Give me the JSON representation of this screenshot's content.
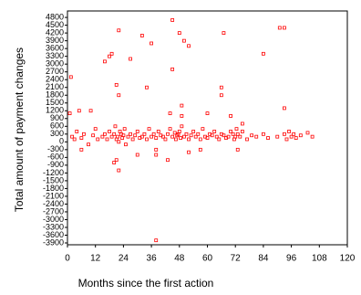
{
  "chart_data": {
    "type": "scatter",
    "y_label": "Total amount of payment changes",
    "x_label": "Months since the first action",
    "color": "#ff0000",
    "xlim": [
      0,
      120
    ],
    "ylim": [
      -3970,
      5050
    ],
    "xticks": [
      0,
      12,
      24,
      36,
      48,
      60,
      72,
      84,
      96,
      108,
      120
    ],
    "yticks": [
      -3900,
      -3600,
      -3300,
      -3000,
      -2700,
      -2400,
      -2100,
      -1800,
      -1500,
      -1200,
      -900,
      -600,
      -300,
      0,
      300,
      600,
      900,
      1200,
      1500,
      1800,
      2100,
      2400,
      2700,
      3000,
      3300,
      3600,
      3900,
      4200,
      4500,
      4800
    ],
    "x": [
      1.5,
      16,
      18,
      19,
      22,
      21,
      22,
      27,
      32,
      34,
      36,
      38,
      45,
      45,
      48,
      50,
      52,
      49,
      49,
      67,
      66,
      66,
      84,
      91,
      93,
      93,
      1,
      5,
      10,
      44,
      60,
      70,
      75,
      6,
      20,
      22,
      21,
      38,
      43,
      52,
      57,
      73,
      30,
      38,
      2,
      3,
      4,
      6,
      7,
      9,
      11,
      12,
      13,
      15,
      16,
      17,
      18,
      19,
      20,
      20.5,
      21,
      21.5,
      22,
      22.5,
      23,
      23.5,
      24,
      24.5,
      25,
      26,
      27,
      28,
      29,
      30,
      31,
      32,
      33,
      34,
      35,
      36,
      37,
      38,
      39,
      40,
      41,
      42,
      43,
      44,
      45,
      46,
      46.5,
      47,
      47.5,
      48,
      48.5,
      49,
      50,
      51,
      52,
      53,
      54,
      55,
      56,
      57,
      58,
      59,
      60,
      61,
      62,
      63,
      64,
      65,
      66,
      67,
      68,
      69,
      70,
      71,
      71.5,
      72,
      72.5,
      73,
      74,
      75,
      77,
      79,
      81,
      84,
      86,
      90,
      93,
      94,
      95,
      96,
      97,
      98,
      100,
      103,
      105
    ],
    "y": [
      2500,
      3100,
      3300,
      3400,
      4300,
      2200,
      1800,
      3200,
      4100,
      2100,
      3800,
      -3800,
      4700,
      2800,
      4200,
      3900,
      3700,
      1400,
      1000,
      4200,
      2100,
      1800,
      3400,
      4400,
      4400,
      1300,
      1100,
      1200,
      1200,
      1100,
      1100,
      1000,
      700,
      -300,
      -800,
      -1100,
      -700,
      -500,
      -700,
      -400,
      -300,
      -300,
      -500,
      -300,
      200,
      100,
      400,
      150,
      300,
      -100,
      250,
      500,
      100,
      200,
      300,
      100,
      400,
      200,
      300,
      600,
      100,
      200,
      0,
      400,
      300,
      150,
      250,
      500,
      -100,
      200,
      300,
      100,
      250,
      400,
      150,
      200,
      300,
      100,
      500,
      200,
      300,
      150,
      400,
      250,
      200,
      100,
      300,
      500,
      200,
      350,
      100,
      250,
      300,
      400,
      150,
      600,
      200,
      300,
      100,
      250,
      400,
      200,
      300,
      100,
      500,
      200,
      150,
      300,
      250,
      400,
      200,
      100,
      300,
      250,
      150,
      200,
      400,
      300,
      100,
      200,
      500,
      300,
      200,
      400,
      100,
      250,
      200,
      300,
      150,
      200,
      300,
      100,
      400,
      200,
      300,
      150,
      250,
      350,
      200
    ]
  }
}
